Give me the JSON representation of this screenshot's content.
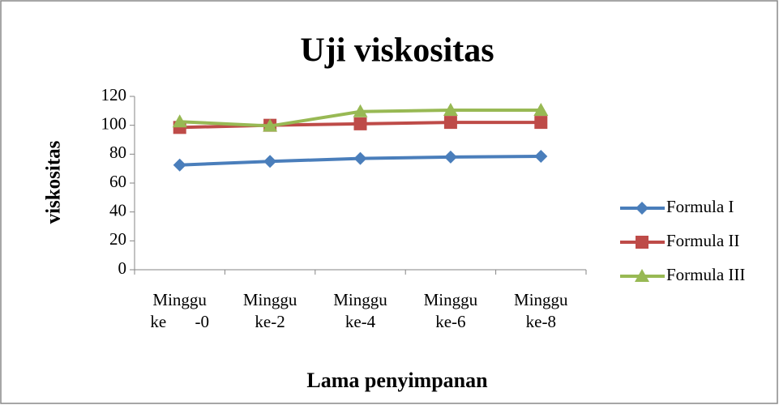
{
  "chart_data": {
    "type": "line",
    "title": "Uji viskositas",
    "x_label": "Lama penyimpanan",
    "y_label": "viskositas",
    "categories": [
      "Minggu ke -0",
      "Minggu ke-2",
      "Minggu ke-4",
      "Minggu ke-6",
      "Minggu ke-8"
    ],
    "series": [
      {
        "name": "Formula I",
        "color": "#4a7ebb",
        "marker": "diamond",
        "values": [
          72.5,
          75,
          77,
          78,
          78.5
        ]
      },
      {
        "name": "Formula II",
        "color": "#be4b48",
        "marker": "square",
        "values": [
          98.5,
          100,
          101,
          102,
          102
        ]
      },
      {
        "name": "Formula III",
        "color": "#98b954",
        "marker": "triangle",
        "values": [
          102.5,
          99.5,
          109.5,
          110.5,
          110.5
        ]
      }
    ],
    "ylim": [
      0,
      120
    ],
    "yticks": [
      0,
      20,
      40,
      60,
      80,
      100,
      120
    ],
    "grid": false,
    "legend": "right"
  }
}
